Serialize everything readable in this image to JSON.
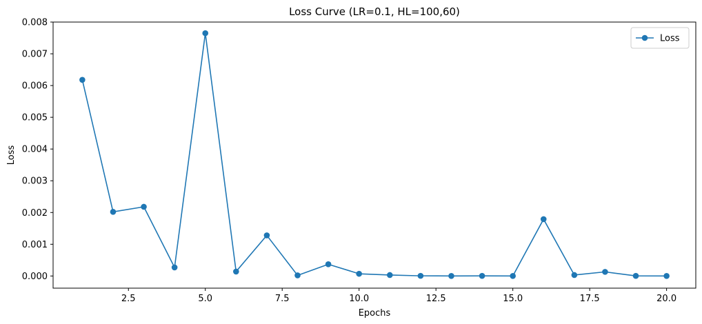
{
  "chart_data": {
    "type": "line",
    "title": "Loss Curve (LR=0.1, HL=100,60)",
    "xlabel": "Epochs",
    "ylabel": "Loss",
    "xlim": [
      0.05,
      20.95
    ],
    "ylim": [
      -0.000383,
      0.008
    ],
    "x_ticks": [
      2.5,
      5.0,
      7.5,
      10.0,
      12.5,
      15.0,
      17.5,
      20.0
    ],
    "x_tick_labels": [
      "2.5",
      "5.0",
      "7.5",
      "10.0",
      "12.5",
      "15.0",
      "17.5",
      "20.0"
    ],
    "y_ticks": [
      0,
      0.001,
      0.002,
      0.003,
      0.004,
      0.005,
      0.006,
      0.007,
      0.008
    ],
    "y_tick_labels": [
      "0.000",
      "0.001",
      "0.002",
      "0.003",
      "0.004",
      "0.005",
      "0.006",
      "0.007",
      "0.008"
    ],
    "grid": false,
    "legend_position": "top-right",
    "series": [
      {
        "name": "Loss",
        "color": "#1f77b4",
        "marker": "circle",
        "x": [
          1,
          2,
          3,
          4,
          5,
          6,
          7,
          8,
          9,
          10,
          11,
          12,
          13,
          14,
          15,
          16,
          17,
          18,
          19,
          20
        ],
        "values": [
          0.00618,
          0.00202,
          0.00218,
          0.00027,
          0.00765,
          0.00014,
          0.00128,
          2e-05,
          0.00037,
          7e-05,
          3e-05,
          5e-06,
          2e-06,
          4e-06,
          1e-06,
          0.00179,
          3e-05,
          0.00013,
          3e-06,
          2e-06
        ]
      }
    ]
  }
}
